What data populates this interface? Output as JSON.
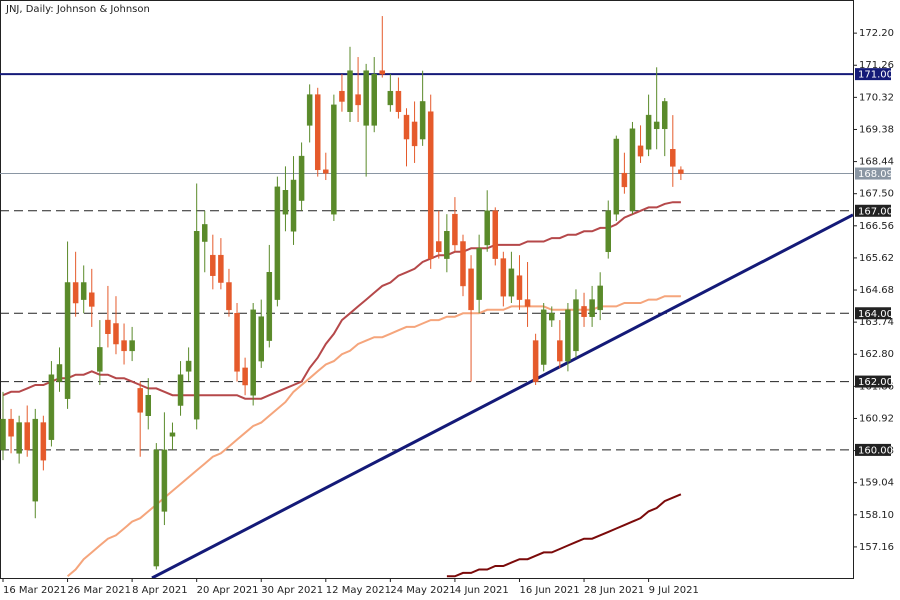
{
  "chart_data": {
    "type": "candlestick",
    "title": "JNJ, Daily:  Johnson & Johnson",
    "categories": [
      "16 Mar 2021",
      null,
      null,
      null,
      null,
      null,
      null,
      null,
      "26 Mar 2021",
      null,
      null,
      null,
      null,
      null,
      null,
      null,
      "8 Apr 2021",
      null,
      null,
      null,
      null,
      null,
      null,
      null,
      "20 Apr 2021",
      null,
      null,
      null,
      null,
      null,
      null,
      null,
      "30 Apr 2021",
      null,
      null,
      null,
      null,
      null,
      null,
      null,
      "12 May 2021",
      null,
      null,
      null,
      null,
      null,
      null,
      null,
      "24 May 2021",
      null,
      null,
      null,
      null,
      null,
      null,
      null,
      "4 Jun 2021",
      null,
      null,
      null,
      null,
      null,
      null,
      null,
      "16 Jun 2021",
      null,
      null,
      null,
      null,
      null,
      null,
      null,
      "28 Jun 2021",
      null,
      null,
      null,
      null,
      null,
      null,
      null,
      "9 Jul 2021",
      null,
      null,
      null,
      null
    ],
    "open": [
      160.0,
      160.9,
      159.9,
      160.8,
      158.5,
      160.8,
      160.3,
      162.0,
      161.5,
      164.9,
      164.4,
      164.6,
      162.3,
      163.8,
      163.7,
      163.2,
      162.9,
      161.8,
      161.0,
      156.6,
      158.2,
      160.4,
      161.3,
      162.3,
      160.9,
      166.1,
      165.7,
      165.7,
      164.9,
      164.0,
      162.4,
      161.6,
      162.6,
      163.2,
      164.4,
      166.9,
      166.4,
      167.3,
      169.5,
      170.4,
      168.2,
      166.9,
      170.5,
      169.9,
      170.4,
      169.5,
      169.5,
      171.1,
      170.1,
      170.5,
      169.8,
      169.6,
      169.1,
      169.9,
      166.1,
      165.6,
      166.9,
      166.1,
      165.3,
      164.4,
      166.0,
      167.0,
      165.6,
      164.5,
      165.1,
      164.4,
      163.2,
      162.5,
      163.8,
      163.2,
      162.6,
      162.9,
      164.2,
      163.9,
      164.1,
      165.8,
      166.9,
      168.1,
      167.0,
      168.9,
      168.8,
      169.4,
      169.4,
      168.8,
      168.2
    ],
    "high": [
      161.7,
      161.2,
      161.0,
      161.3,
      161.2,
      161.0,
      162.6,
      163.0,
      166.1,
      165.8,
      165.4,
      165.3,
      163.8,
      164.8,
      164.5,
      163.7,
      163.6,
      162.0,
      162.1,
      160.2,
      161.1,
      160.8,
      162.6,
      163.0,
      167.8,
      167.0,
      166.3,
      166.2,
      165.3,
      164.3,
      162.7,
      164.3,
      164.4,
      166.0,
      168.0,
      168.3,
      168.6,
      169.0,
      170.7,
      170.6,
      168.7,
      170.4,
      171.0,
      171.8,
      171.5,
      171.3,
      171.5,
      172.7,
      171.0,
      170.9,
      170.0,
      170.2,
      171.1,
      170.4,
      167.0,
      166.9,
      167.4,
      166.3,
      165.7,
      166.3,
      167.6,
      167.1,
      165.8,
      165.8,
      165.7,
      165.5,
      163.4,
      164.3,
      164.2,
      163.8,
      164.3,
      164.7,
      164.6,
      164.8,
      165.2,
      167.3,
      169.2,
      168.7,
      169.6,
      169.5,
      170.4,
      171.2,
      170.3,
      169.8,
      168.3
    ],
    "low": [
      159.7,
      159.9,
      159.6,
      159.8,
      158.0,
      159.4,
      160.1,
      161.7,
      161.2,
      163.9,
      164.0,
      163.6,
      161.9,
      163.0,
      162.8,
      162.5,
      162.6,
      159.8,
      160.6,
      156.5,
      157.8,
      160.0,
      161.0,
      162.0,
      160.6,
      165.2,
      164.7,
      164.7,
      163.9,
      162.0,
      161.6,
      161.3,
      162.4,
      163.0,
      164.2,
      166.4,
      166.0,
      167.0,
      169.0,
      168.0,
      167.9,
      166.7,
      169.9,
      169.6,
      169.6,
      168.0,
      169.3,
      170.9,
      169.9,
      169.7,
      168.3,
      168.4,
      168.9,
      165.3,
      165.6,
      165.2,
      165.8,
      164.5,
      162.0,
      164.0,
      165.8,
      165.4,
      164.2,
      164.3,
      164.1,
      163.6,
      161.9,
      162.3,
      163.6,
      162.4,
      162.3,
      162.7,
      163.6,
      163.6,
      163.8,
      165.6,
      166.7,
      167.5,
      166.9,
      168.4,
      168.6,
      168.8,
      168.6,
      167.7,
      167.9
    ],
    "close": [
      160.9,
      160.4,
      160.8,
      160.0,
      160.9,
      159.7,
      162.2,
      162.5,
      164.9,
      164.3,
      164.9,
      164.2,
      163.0,
      163.4,
      163.1,
      162.9,
      163.2,
      161.1,
      161.6,
      160.0,
      160.0,
      160.5,
      162.2,
      162.6,
      166.4,
      166.6,
      165.1,
      164.9,
      164.1,
      162.3,
      161.9,
      164.1,
      163.9,
      165.2,
      167.7,
      167.6,
      167.9,
      168.6,
      170.4,
      168.2,
      168.1,
      170.1,
      170.2,
      171.1,
      170.1,
      171.1,
      171.0,
      171.0,
      170.5,
      169.9,
      169.1,
      168.9,
      170.2,
      165.6,
      165.8,
      166.4,
      166.0,
      164.8,
      164.1,
      165.9,
      167.0,
      165.6,
      164.5,
      165.3,
      164.4,
      164.2,
      162.0,
      164.1,
      164.0,
      162.6,
      164.1,
      164.4,
      163.9,
      164.4,
      164.8,
      167.0,
      169.1,
      167.7,
      169.4,
      168.6,
      169.8,
      169.6,
      170.2,
      168.3,
      168.09
    ],
    "up_color": "#5a8a2a",
    "down_color": "#e55a2b",
    "moving_averages": [
      {
        "color": "#b5484a",
        "values": [
          161.6,
          161.7,
          161.7,
          161.8,
          161.9,
          161.9,
          162.0,
          162.1,
          162.1,
          162.2,
          162.2,
          162.3,
          162.2,
          162.2,
          162.1,
          162.1,
          162.0,
          161.9,
          161.8,
          161.8,
          161.7,
          161.6,
          161.6,
          161.6,
          161.6,
          161.6,
          161.6,
          161.6,
          161.6,
          161.6,
          161.5,
          161.5,
          161.5,
          161.6,
          161.7,
          161.8,
          161.9,
          162.0,
          162.4,
          162.7,
          163.1,
          163.4,
          163.8,
          164.0,
          164.2,
          164.4,
          164.6,
          164.8,
          164.9,
          165.1,
          165.2,
          165.3,
          165.5,
          165.6,
          165.7,
          165.7,
          165.8,
          165.8,
          165.9,
          165.9,
          165.9,
          166.0,
          166.0,
          166.0,
          166.0,
          166.1,
          166.1,
          166.1,
          166.2,
          166.2,
          166.3,
          166.3,
          166.4,
          166.4,
          166.5,
          166.5,
          166.6,
          166.8,
          166.9,
          167.0,
          167.1,
          167.1,
          167.2,
          167.25,
          167.25
        ]
      },
      {
        "color": "#f5a57c",
        "values": [
          null,
          null,
          null,
          null,
          null,
          null,
          null,
          null,
          156.3,
          156.5,
          156.8,
          157.0,
          157.2,
          157.4,
          157.5,
          157.7,
          157.9,
          158.0,
          158.2,
          158.4,
          158.6,
          158.8,
          159.0,
          159.2,
          159.4,
          159.6,
          159.8,
          159.9,
          160.1,
          160.3,
          160.5,
          160.7,
          160.8,
          161.0,
          161.2,
          161.4,
          161.7,
          161.9,
          162.1,
          162.3,
          162.5,
          162.6,
          162.8,
          162.9,
          163.1,
          163.2,
          163.3,
          163.3,
          163.4,
          163.5,
          163.6,
          163.6,
          163.7,
          163.8,
          163.8,
          163.9,
          163.9,
          164.0,
          164.0,
          164.0,
          164.1,
          164.1,
          164.1,
          164.2,
          164.2,
          164.2,
          164.2,
          164.2,
          164.1,
          164.1,
          164.1,
          164.1,
          164.1,
          164.1,
          164.2,
          164.2,
          164.2,
          164.3,
          164.3,
          164.3,
          164.4,
          164.4,
          164.5,
          164.5,
          164.5
        ]
      },
      {
        "color": "#7b0a0a",
        "values": [
          null,
          null,
          null,
          null,
          null,
          null,
          null,
          null,
          null,
          null,
          null,
          null,
          null,
          null,
          null,
          null,
          null,
          null,
          null,
          null,
          null,
          null,
          null,
          null,
          null,
          null,
          null,
          null,
          null,
          null,
          null,
          null,
          null,
          null,
          null,
          null,
          null,
          null,
          null,
          null,
          null,
          null,
          null,
          null,
          null,
          null,
          null,
          null,
          null,
          null,
          null,
          null,
          null,
          null,
          null,
          156.3,
          156.3,
          156.4,
          156.4,
          156.5,
          156.5,
          156.6,
          156.6,
          156.7,
          156.8,
          156.8,
          156.9,
          157.0,
          157.0,
          157.1,
          157.2,
          157.3,
          157.4,
          157.4,
          157.5,
          157.6,
          157.7,
          157.8,
          157.9,
          158.0,
          158.2,
          158.3,
          158.5,
          158.6,
          158.7
        ]
      }
    ],
    "trendline": [
      156.25,
      166.88
    ],
    "trendline_color": "#141a78",
    "levels": [
      {
        "value": 171,
        "label": "171.00",
        "style": "solid",
        "color": "#141a78"
      },
      {
        "value": 167,
        "label": "167.00",
        "style": "dashed",
        "color": "#222222"
      },
      {
        "value": 164,
        "label": "164.00",
        "style": "dashed",
        "color": "#222222"
      },
      {
        "value": 162,
        "label": "162.00",
        "style": "dashed",
        "color": "#222222"
      },
      {
        "value": 160,
        "label": "160.00",
        "style": "dashed",
        "color": "#222222"
      }
    ],
    "current_price": 168.09,
    "current_price_color": "#8a96a3",
    "ylim": [
      156.25,
      173.17
    ],
    "yticks": [
      {
        "value": 172.2,
        "label": "172.20"
      },
      {
        "value": 171.26,
        "label": "171.26"
      },
      {
        "value": 170.32,
        "label": "170.32"
      },
      {
        "value": 169.38,
        "label": "169.38"
      },
      {
        "value": 168.44,
        "label": "168.44"
      },
      {
        "value": 167.5,
        "label": "167.50"
      },
      {
        "value": 166.56,
        "label": "166.56"
      },
      {
        "value": 165.62,
        "label": "165.62"
      },
      {
        "value": 164.68,
        "label": "164.68"
      },
      {
        "value": 163.74,
        "label": "163.74"
      },
      {
        "value": 162.8,
        "label": "162.80"
      },
      {
        "value": 161.86,
        "label": "161.86"
      },
      {
        "value": 160.92,
        "label": "160.92"
      },
      {
        "value": 159.98,
        "label": "159.98"
      },
      {
        "value": 159.04,
        "label": "159.04"
      },
      {
        "value": 158.1,
        "label": "158.10"
      },
      {
        "value": 157.16,
        "label": "157.16"
      }
    ]
  }
}
